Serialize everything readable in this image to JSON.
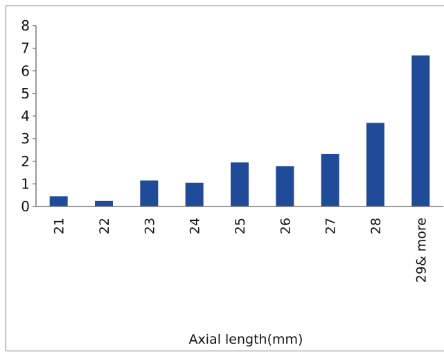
{
  "chart_data": {
    "type": "bar",
    "title": "",
    "xlabel": "Axial length(mm)",
    "ylabel": "",
    "categories": [
      "21",
      "22",
      "23",
      "24",
      "25",
      "26",
      "27",
      "28",
      "29& more"
    ],
    "values": [
      0.45,
      0.25,
      1.15,
      1.05,
      1.95,
      1.78,
      2.33,
      3.7,
      6.68
    ],
    "ylim": [
      0,
      8
    ],
    "yticks": [
      "0",
      "1",
      "2",
      "3",
      "4",
      "5",
      "6",
      "7",
      "8"
    ],
    "grid": false,
    "legend": "none",
    "bar_color": "#1f4b99"
  }
}
